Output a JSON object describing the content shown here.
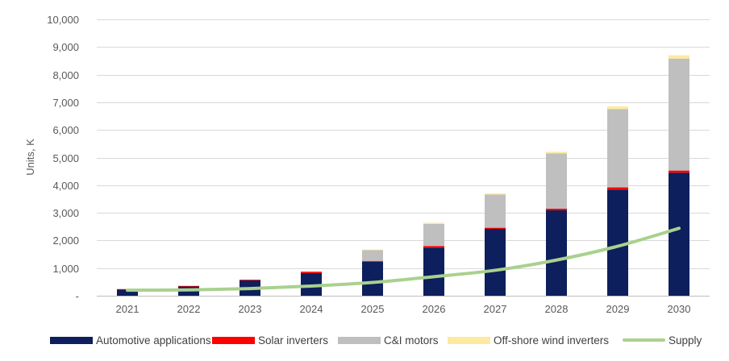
{
  "chart_data": {
    "type": "stacked-bar-line",
    "title": "",
    "xlabel": "",
    "ylabel": "Units, K",
    "ylim": [
      0,
      10000
    ],
    "yticks": [
      0,
      1000,
      2000,
      3000,
      4000,
      5000,
      6000,
      7000,
      8000,
      9000,
      10000
    ],
    "ytick_labels": [
      "-",
      "1,000",
      "2,000",
      "3,000",
      "4,000",
      "5,000",
      "6,000",
      "7,000",
      "8,000",
      "9,000",
      "10,000"
    ],
    "grid": true,
    "legend_position": "bottom",
    "categories": [
      "2021",
      "2022",
      "2023",
      "2024",
      "2025",
      "2026",
      "2027",
      "2028",
      "2029",
      "2030"
    ],
    "series": [
      {
        "name": "Automotive applications",
        "kind": "bar",
        "color": "#0d1f5c",
        "values": [
          230,
          340,
          560,
          820,
          1230,
          1740,
          2420,
          3090,
          3840,
          4450
        ]
      },
      {
        "name": "Solar inverters",
        "kind": "bar",
        "color": "#ff0000",
        "values": [
          10,
          15,
          20,
          50,
          30,
          60,
          40,
          60,
          80,
          80
        ]
      },
      {
        "name": "C&I motors",
        "kind": "bar",
        "color": "#bfbfbf",
        "values": [
          0,
          0,
          0,
          0,
          400,
          800,
          1200,
          2000,
          2830,
          4050
        ]
      },
      {
        "name": "Off-shore wind inverters",
        "kind": "bar",
        "color": "#fde9a0",
        "values": [
          0,
          0,
          0,
          0,
          10,
          40,
          40,
          60,
          100,
          120
        ]
      },
      {
        "name": "Supply",
        "kind": "line",
        "color": "#a9d18e",
        "values": [
          200,
          210,
          260,
          350,
          480,
          690,
          920,
          1290,
          1790,
          2440
        ]
      }
    ]
  }
}
